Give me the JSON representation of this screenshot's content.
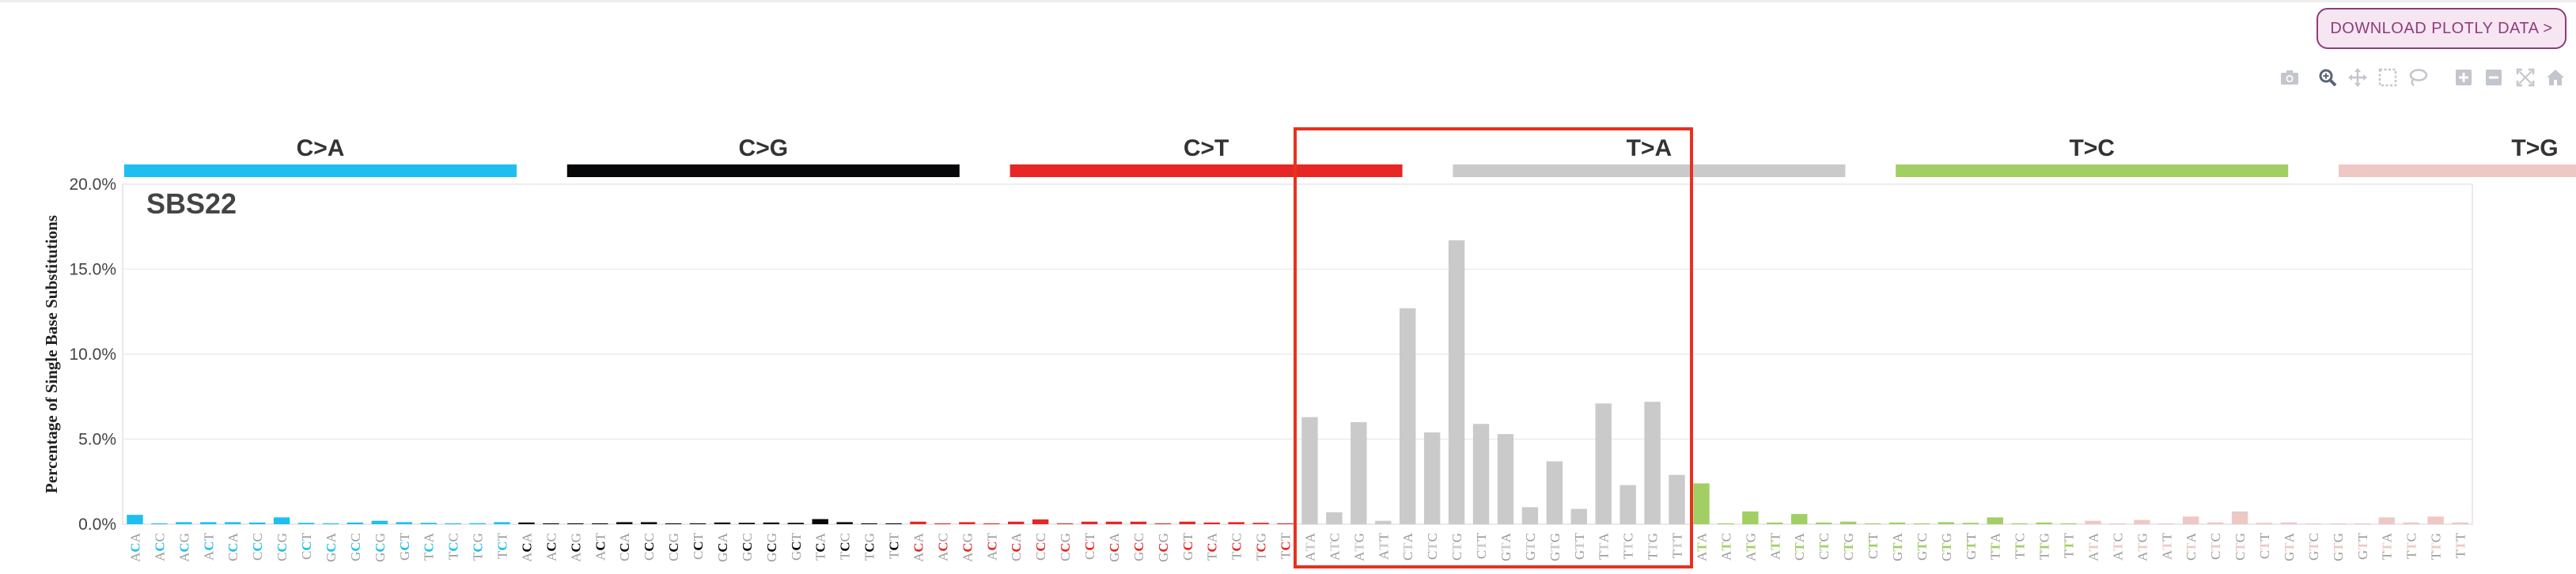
{
  "download_button": {
    "label": "DOWNLOAD PLOTLY DATA >"
  },
  "modebar": {
    "icons": [
      "camera-icon",
      "zoom-icon",
      "pan-icon",
      "box-select-icon",
      "lasso-select-icon",
      "zoom-in-icon",
      "zoom-out-icon",
      "autoscale-icon",
      "reset-axes-icon"
    ]
  },
  "highlight_color": "#e8321e",
  "chart_data": {
    "type": "bar",
    "title": "SBS22",
    "xlabel": "",
    "ylabel": "Percentage of Single Base Substitutions",
    "ylim": [
      0,
      20
    ],
    "y_ticks": [
      "0.0%",
      "5.0%",
      "10.0%",
      "15.0%",
      "20.0%"
    ],
    "grid": true,
    "highlighted_group": "T>A",
    "groups": [
      {
        "name": "C>A",
        "color": "#1ebff0",
        "categories": [
          "ACA",
          "ACC",
          "ACG",
          "ACT",
          "CCA",
          "CCC",
          "CCG",
          "CCT",
          "GCA",
          "GCC",
          "GCG",
          "GCT",
          "TCA",
          "TCC",
          "TCG",
          "TCT"
        ],
        "values": [
          0.55,
          0.05,
          0.12,
          0.12,
          0.12,
          0.1,
          0.4,
          0.08,
          0.05,
          0.1,
          0.2,
          0.12,
          0.08,
          0.05,
          0.06,
          0.12
        ]
      },
      {
        "name": "C>G",
        "color": "#050708",
        "categories": [
          "ACA",
          "ACC",
          "ACG",
          "ACT",
          "CCA",
          "CCC",
          "CCG",
          "CCT",
          "GCA",
          "GCC",
          "GCG",
          "GCT",
          "TCA",
          "TCC",
          "TCG",
          "TCT"
        ],
        "values": [
          0.1,
          0.05,
          0.05,
          0.05,
          0.12,
          0.12,
          0.05,
          0.05,
          0.1,
          0.08,
          0.1,
          0.08,
          0.3,
          0.12,
          0.05,
          0.05
        ]
      },
      {
        "name": "C>T",
        "color": "#e62725",
        "categories": [
          "ACA",
          "ACC",
          "ACG",
          "ACT",
          "CCA",
          "CCC",
          "CCG",
          "CCT",
          "GCA",
          "GCC",
          "GCG",
          "GCT",
          "TCA",
          "TCC",
          "TCG",
          "TCT"
        ],
        "values": [
          0.15,
          0.05,
          0.12,
          0.05,
          0.15,
          0.28,
          0.05,
          0.15,
          0.15,
          0.15,
          0.05,
          0.15,
          0.1,
          0.12,
          0.08,
          0.05
        ]
      },
      {
        "name": "T>A",
        "color": "#cbcacb",
        "categories": [
          "ATA",
          "ATC",
          "ATG",
          "ATT",
          "CTA",
          "CTC",
          "CTG",
          "CTT",
          "GTA",
          "GTC",
          "GTG",
          "GTT",
          "TTA",
          "TTC",
          "TTG",
          "TTT"
        ],
        "values": [
          6.3,
          0.7,
          6.0,
          0.2,
          12.7,
          5.4,
          16.7,
          5.9,
          5.3,
          1.0,
          3.7,
          0.9,
          7.1,
          2.3,
          7.2,
          2.9
        ]
      },
      {
        "name": "T>C",
        "color": "#a1cf64",
        "categories": [
          "ATA",
          "ATC",
          "ATG",
          "ATT",
          "CTA",
          "CTC",
          "CTG",
          "CTT",
          "GTA",
          "GTC",
          "GTG",
          "GTT",
          "TTA",
          "TTC",
          "TTG",
          "TTT"
        ],
        "values": [
          2.4,
          0.05,
          0.75,
          0.1,
          0.6,
          0.1,
          0.15,
          0.05,
          0.1,
          0.05,
          0.12,
          0.08,
          0.4,
          0.05,
          0.1,
          0.05
        ]
      },
      {
        "name": "T>G",
        "color": "#edc8c5",
        "categories": [
          "ATA",
          "ATC",
          "ATG",
          "ATT",
          "CTA",
          "CTC",
          "CTG",
          "CTT",
          "GTA",
          "GTC",
          "GTG",
          "GTT",
          "TTA",
          "TTC",
          "TTG",
          "TTT"
        ],
        "values": [
          0.2,
          0.05,
          0.25,
          0.05,
          0.45,
          0.1,
          0.75,
          0.08,
          0.1,
          0.05,
          0.05,
          0.05,
          0.4,
          0.1,
          0.45,
          0.1
        ]
      }
    ]
  }
}
